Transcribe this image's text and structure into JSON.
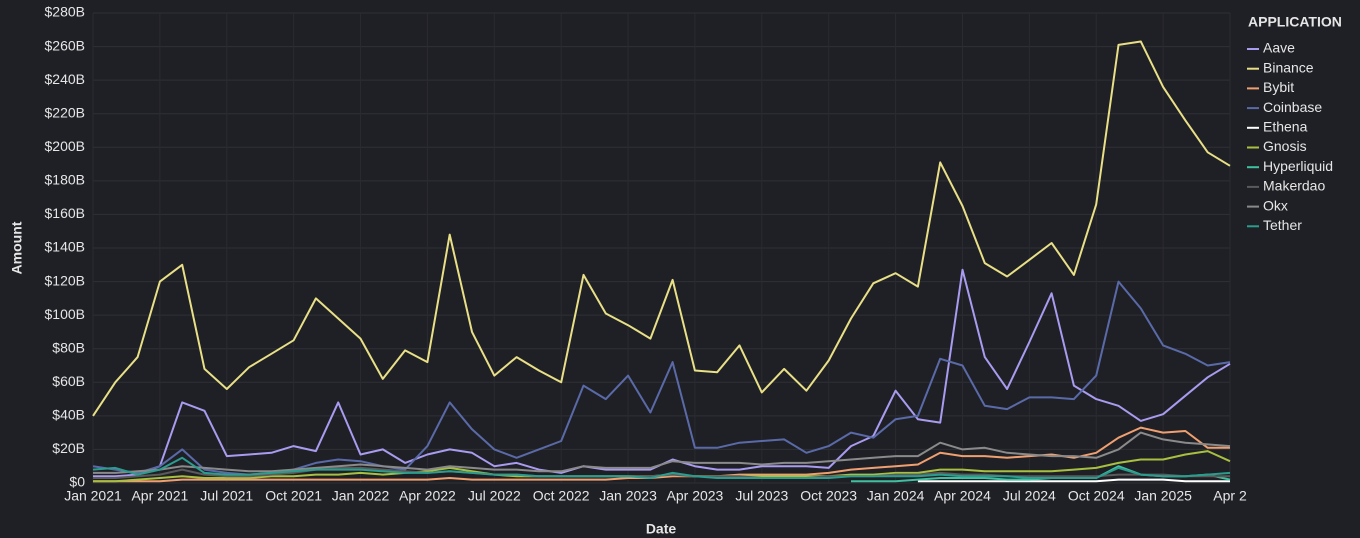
{
  "chart_data": {
    "type": "line",
    "y_axis_label": "Amount",
    "x_axis_label": "Date",
    "legend_title": "APPLICATION",
    "legend_position": "right",
    "grid": true,
    "x": [
      "2021-01",
      "2021-02",
      "2021-03",
      "2021-04",
      "2021-05",
      "2021-06",
      "2021-07",
      "2021-08",
      "2021-09",
      "2021-10",
      "2021-11",
      "2021-12",
      "2022-01",
      "2022-02",
      "2022-03",
      "2022-04",
      "2022-05",
      "2022-06",
      "2022-07",
      "2022-08",
      "2022-09",
      "2022-10",
      "2022-11",
      "2022-12",
      "2023-01",
      "2023-02",
      "2023-03",
      "2023-04",
      "2023-05",
      "2023-06",
      "2023-07",
      "2023-08",
      "2023-09",
      "2023-10",
      "2023-11",
      "2023-12",
      "2024-01",
      "2024-02",
      "2024-03",
      "2024-04",
      "2024-05",
      "2024-06",
      "2024-07",
      "2024-08",
      "2024-09",
      "2024-10",
      "2024-11",
      "2024-12",
      "2025-01",
      "2025-02",
      "2025-03",
      "2025-04"
    ],
    "xticks": [
      {
        "value": "2021-01",
        "label": "Jan 2021"
      },
      {
        "value": "2021-04",
        "label": "Apr 2021"
      },
      {
        "value": "2021-07",
        "label": "Jul 2021"
      },
      {
        "value": "2021-10",
        "label": "Oct 2021"
      },
      {
        "value": "2022-01",
        "label": "Jan 2022"
      },
      {
        "value": "2022-04",
        "label": "Apr 2022"
      },
      {
        "value": "2022-07",
        "label": "Jul 2022"
      },
      {
        "value": "2022-10",
        "label": "Oct 2022"
      },
      {
        "value": "2023-01",
        "label": "Jan 2023"
      },
      {
        "value": "2023-04",
        "label": "Apr 2023"
      },
      {
        "value": "2023-07",
        "label": "Jul 2023"
      },
      {
        "value": "2023-10",
        "label": "Oct 2023"
      },
      {
        "value": "2024-01",
        "label": "Jan 2024"
      },
      {
        "value": "2024-04",
        "label": "Apr 2024"
      },
      {
        "value": "2024-07",
        "label": "Jul 2024"
      },
      {
        "value": "2024-10",
        "label": "Oct 2024"
      },
      {
        "value": "2025-01",
        "label": "Jan 2025"
      },
      {
        "value": "2025-04",
        "label": "Apr 2"
      }
    ],
    "ylim": [
      0,
      280
    ],
    "yticks": [
      {
        "value": 0,
        "label": "$0"
      },
      {
        "value": 20,
        "label": "$20B"
      },
      {
        "value": 40,
        "label": "$40B"
      },
      {
        "value": 60,
        "label": "$60B"
      },
      {
        "value": 80,
        "label": "$80B"
      },
      {
        "value": 100,
        "label": "$100B"
      },
      {
        "value": 120,
        "label": "$120B"
      },
      {
        "value": 140,
        "label": "$140B"
      },
      {
        "value": 160,
        "label": "$160B"
      },
      {
        "value": 180,
        "label": "$180B"
      },
      {
        "value": 200,
        "label": "$200B"
      },
      {
        "value": 220,
        "label": "$220B"
      },
      {
        "value": 240,
        "label": "$240B"
      },
      {
        "value": 260,
        "label": "$260B"
      },
      {
        "value": 280,
        "label": "$280B"
      }
    ],
    "series": [
      {
        "name": "Aave",
        "color": "#a99bf0",
        "values": [
          4,
          4,
          5,
          10,
          48,
          43,
          16,
          17,
          18,
          22,
          19,
          48,
          17,
          20,
          12,
          17,
          20,
          18,
          10,
          12,
          8,
          6,
          10,
          8,
          8,
          8,
          14,
          10,
          8,
          8,
          10,
          10,
          10,
          9,
          22,
          28,
          55,
          38,
          36,
          127,
          75,
          56,
          84,
          113,
          58,
          50,
          46,
          37,
          41,
          52,
          63,
          71
        ]
      },
      {
        "name": "Binance",
        "color": "#e8df86",
        "values": [
          40,
          60,
          75,
          120,
          130,
          68,
          56,
          69,
          77,
          85,
          110,
          98,
          86,
          62,
          79,
          72,
          148,
          90,
          64,
          75,
          67,
          60,
          124,
          101,
          94,
          86,
          121,
          67,
          66,
          82,
          54,
          68,
          55,
          73,
          98,
          119,
          125,
          117,
          191,
          165,
          131,
          123,
          133,
          143,
          124,
          166,
          261,
          263,
          236,
          216,
          197,
          189
        ]
      },
      {
        "name": "Bybit",
        "color": "#f0a070",
        "values": [
          1,
          1,
          1,
          1,
          2,
          2,
          2,
          2,
          2,
          2,
          2,
          2,
          2,
          2,
          2,
          2,
          3,
          2,
          2,
          2,
          2,
          2,
          2,
          2,
          3,
          3,
          4,
          4,
          4,
          5,
          5,
          5,
          5,
          6,
          8,
          9,
          10,
          11,
          18,
          16,
          16,
          15,
          16,
          17,
          15,
          18,
          27,
          33,
          30,
          31,
          21,
          21
        ]
      },
      {
        "name": "Coinbase",
        "color": "#5a6aa8",
        "values": [
          10,
          8,
          6,
          10,
          20,
          8,
          6,
          5,
          6,
          8,
          12,
          14,
          13,
          10,
          8,
          22,
          48,
          32,
          20,
          15,
          20,
          25,
          58,
          50,
          64,
          42,
          72,
          21,
          21,
          24,
          25,
          26,
          18,
          22,
          30,
          27,
          38,
          40,
          74,
          70,
          46,
          44,
          51,
          51,
          50,
          64,
          120,
          104,
          82,
          77,
          70,
          72
        ]
      },
      {
        "name": "Ethena",
        "color": "#ffffff",
        "values": [
          null,
          null,
          null,
          null,
          null,
          null,
          null,
          null,
          null,
          null,
          null,
          null,
          null,
          null,
          null,
          null,
          null,
          null,
          null,
          null,
          null,
          null,
          null,
          null,
          null,
          null,
          null,
          null,
          null,
          null,
          null,
          null,
          null,
          null,
          null,
          null,
          null,
          1,
          1,
          1,
          1,
          1,
          1,
          1,
          1,
          1,
          2,
          2,
          2,
          1,
          1,
          1
        ]
      },
      {
        "name": "Gnosis",
        "color": "#a8c040",
        "values": [
          1,
          1,
          2,
          3,
          4,
          3,
          3,
          3,
          4,
          4,
          5,
          5,
          6,
          5,
          6,
          7,
          9,
          7,
          5,
          4,
          4,
          4,
          4,
          4,
          4,
          4,
          5,
          4,
          4,
          4,
          4,
          4,
          4,
          4,
          5,
          5,
          6,
          6,
          8,
          8,
          7,
          7,
          7,
          7,
          8,
          9,
          12,
          14,
          14,
          17,
          19,
          13
        ]
      },
      {
        "name": "Hyperliquid",
        "color": "#3fc0a0",
        "values": [
          null,
          null,
          null,
          null,
          null,
          null,
          null,
          null,
          null,
          null,
          null,
          null,
          null,
          null,
          null,
          null,
          null,
          null,
          null,
          null,
          null,
          null,
          null,
          null,
          null,
          null,
          null,
          null,
          null,
          null,
          null,
          null,
          null,
          null,
          1,
          1,
          1,
          2,
          3,
          3,
          3,
          2,
          2,
          3,
          3,
          3,
          10,
          5,
          4,
          4,
          5,
          2
        ]
      },
      {
        "name": "Makerdao",
        "color": "#5a5a5a",
        "values": [
          3,
          3,
          4,
          5,
          8,
          5,
          4,
          4,
          5,
          6,
          8,
          9,
          9,
          8,
          7,
          6,
          7,
          6,
          5,
          5,
          4,
          4,
          4,
          4,
          4,
          4,
          5,
          4,
          4,
          4,
          3,
          3,
          3,
          4,
          4,
          4,
          5,
          5,
          6,
          5,
          5,
          4,
          4,
          4,
          4,
          4,
          5,
          5,
          5,
          4,
          4,
          4
        ]
      },
      {
        "name": "Okx",
        "color": "#8a8a8a",
        "values": [
          6,
          6,
          7,
          8,
          10,
          9,
          8,
          7,
          7,
          8,
          9,
          10,
          11,
          10,
          9,
          8,
          10,
          9,
          8,
          8,
          7,
          7,
          10,
          9,
          9,
          9,
          13,
          12,
          12,
          12,
          11,
          12,
          12,
          13,
          14,
          15,
          16,
          16,
          24,
          20,
          21,
          18,
          17,
          16,
          16,
          15,
          20,
          30,
          26,
          24,
          23,
          22
        ]
      },
      {
        "name": "Tether",
        "color": "#2a9d8f",
        "values": [
          8,
          9,
          5,
          8,
          15,
          6,
          5,
          5,
          6,
          7,
          8,
          8,
          8,
          7,
          6,
          6,
          7,
          6,
          5,
          5,
          4,
          4,
          4,
          4,
          4,
          3,
          6,
          4,
          3,
          3,
          3,
          3,
          3,
          3,
          4,
          4,
          4,
          4,
          5,
          4,
          4,
          4,
          3,
          3,
          3,
          3,
          9,
          5,
          4,
          4,
          5,
          6
        ]
      }
    ]
  }
}
